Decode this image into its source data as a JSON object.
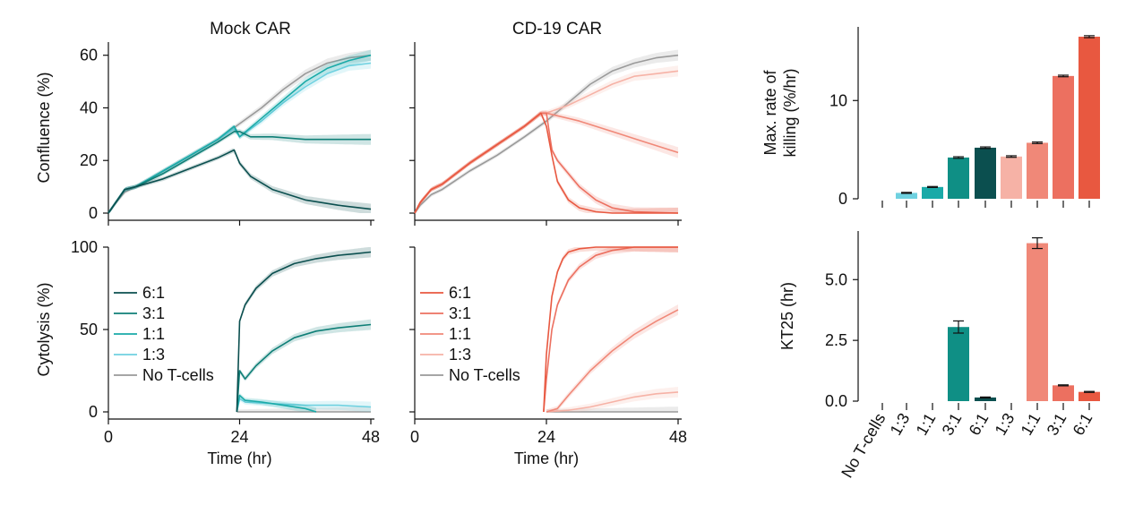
{
  "colors": {
    "teal": [
      "#0b4f4f",
      "#0f7f77",
      "#1aaaa8",
      "#6fd1e0"
    ],
    "coral": [
      "#e85840",
      "#ec7060",
      "#f08878",
      "#f6b2a6"
    ],
    "gray": "#9a9a9a",
    "bar_colors": [
      "#9a9a9a",
      "#6fd1e0",
      "#1aaaa8",
      "#0f8f85",
      "#0b4f4f",
      "#f6b2a6",
      "#f08878",
      "#ec7060",
      "#e85840"
    ]
  },
  "chart_data": [
    {
      "id": "mock_confluence",
      "type": "line",
      "title": "Mock CAR",
      "xlabel": "",
      "ylabel": "Confluence (%)",
      "xlim": [
        0,
        48
      ],
      "ylim": [
        0,
        65
      ],
      "xticks": [
        0,
        24,
        48
      ],
      "yticks": [
        0,
        20,
        40,
        60
      ],
      "ytick_labels": [
        "0",
        "20",
        "40",
        "60"
      ],
      "series": [
        {
          "color_ref": "teal.0",
          "x": [
            0,
            1,
            3,
            5,
            10,
            15,
            20,
            23,
            24,
            26,
            30,
            36,
            42,
            48
          ],
          "y": [
            0,
            3,
            9,
            10,
            13,
            17,
            21,
            24,
            19,
            14,
            9,
            5,
            3,
            1.5
          ]
        },
        {
          "color_ref": "teal.1",
          "x": [
            0,
            1,
            3,
            5,
            10,
            15,
            20,
            23,
            24,
            26,
            30,
            36,
            42,
            48
          ],
          "y": [
            0,
            3,
            9,
            10,
            15,
            21,
            27,
            31,
            31,
            29,
            29,
            28,
            28,
            28
          ]
        },
        {
          "color_ref": "teal.2",
          "x": [
            0,
            1,
            3,
            5,
            10,
            15,
            20,
            23,
            24,
            28,
            32,
            36,
            40,
            44,
            48
          ],
          "y": [
            0,
            3,
            9,
            10,
            16,
            22,
            28,
            33,
            29,
            36,
            43,
            50,
            55,
            58,
            60
          ]
        },
        {
          "color_ref": "teal.3",
          "x": [
            0,
            1,
            3,
            5,
            10,
            15,
            20,
            23,
            24,
            28,
            32,
            36,
            40,
            44,
            48
          ],
          "y": [
            0,
            3,
            9,
            10,
            16,
            22,
            28,
            32,
            29,
            35,
            42,
            48,
            53,
            56,
            57
          ]
        },
        {
          "color_ref": "gray",
          "x": [
            0,
            1,
            3,
            5,
            10,
            15,
            20,
            24,
            28,
            32,
            36,
            40,
            44,
            48
          ],
          "y": [
            0,
            3,
            8,
            10,
            16,
            22,
            28,
            34,
            40,
            47,
            53,
            57,
            59,
            60
          ]
        }
      ]
    },
    {
      "id": "cd19_confluence",
      "type": "line",
      "title": "CD-19 CAR",
      "xlabel": "",
      "ylabel": "",
      "xlim": [
        0,
        48
      ],
      "ylim": [
        0,
        65
      ],
      "xticks": [
        0,
        24,
        48
      ],
      "yticks": [
        0,
        20,
        40,
        60
      ],
      "series": [
        {
          "color_ref": "coral.0",
          "x": [
            0,
            1,
            3,
            5,
            10,
            15,
            20,
            23,
            24,
            25,
            26,
            28,
            30,
            33,
            36,
            48
          ],
          "y": [
            0,
            4,
            9,
            11,
            19,
            26,
            33,
            38,
            33,
            22,
            12,
            5,
            2,
            0.5,
            0,
            0
          ]
        },
        {
          "color_ref": "coral.1",
          "x": [
            0,
            1,
            3,
            5,
            10,
            15,
            20,
            23,
            24,
            25,
            26,
            28,
            30,
            33,
            36,
            40,
            48
          ],
          "y": [
            0,
            4,
            9,
            11,
            19,
            26,
            33,
            38,
            38,
            24,
            20,
            15,
            10,
            5,
            2,
            0.5,
            0
          ]
        },
        {
          "color_ref": "coral.2",
          "x": [
            0,
            1,
            3,
            5,
            10,
            15,
            20,
            23,
            24,
            26,
            30,
            36,
            42,
            48
          ],
          "y": [
            0,
            4,
            9,
            11,
            19,
            26,
            33,
            38,
            38,
            37,
            35,
            31,
            27,
            23
          ]
        },
        {
          "color_ref": "coral.3",
          "x": [
            0,
            1,
            3,
            5,
            10,
            15,
            20,
            23,
            24,
            28,
            32,
            36,
            40,
            44,
            48
          ],
          "y": [
            0,
            4,
            9,
            11,
            19,
            26,
            33,
            38,
            38,
            41,
            45,
            49,
            52,
            53,
            54
          ]
        },
        {
          "color_ref": "gray",
          "x": [
            0,
            1,
            3,
            5,
            10,
            15,
            20,
            24,
            28,
            32,
            36,
            40,
            44,
            48
          ],
          "y": [
            0,
            3,
            7,
            9,
            16,
            22,
            29,
            35,
            42,
            49,
            54,
            57,
            59,
            60
          ]
        }
      ]
    },
    {
      "id": "mock_cytolysis",
      "type": "line",
      "title": "",
      "xlabel": "Time (hr)",
      "ylabel": "Cytolysis (%)",
      "xlim": [
        0,
        48
      ],
      "ylim": [
        0,
        100
      ],
      "xticks": [
        0,
        24,
        48
      ],
      "xtick_labels": [
        "0",
        "24",
        "48"
      ],
      "yticks": [
        0,
        50,
        100
      ],
      "ytick_labels": [
        "0",
        "50",
        "100"
      ],
      "series": [
        {
          "name": "6:1",
          "color_ref": "teal.0",
          "x": [
            23.5,
            24,
            25,
            27,
            30,
            34,
            38,
            42,
            45,
            48
          ],
          "y": [
            0,
            55,
            65,
            75,
            84,
            90,
            93,
            95,
            96,
            97
          ]
        },
        {
          "name": "3:1",
          "color_ref": "teal.1",
          "x": [
            23.5,
            24,
            25,
            27,
            30,
            34,
            38,
            42,
            45,
            48
          ],
          "y": [
            0,
            25,
            20,
            28,
            37,
            45,
            49,
            51,
            52,
            53
          ]
        },
        {
          "name": "1:1",
          "color_ref": "teal.2",
          "x": [
            23.5,
            24,
            25,
            28,
            32,
            36,
            38
          ],
          "y": [
            0,
            10,
            7,
            6,
            4,
            2,
            0
          ]
        },
        {
          "name": "1:3",
          "color_ref": "teal.3",
          "x": [
            23.5,
            24,
            25,
            30,
            36,
            42,
            48
          ],
          "y": [
            0,
            8,
            6,
            5,
            4,
            4,
            3
          ]
        },
        {
          "name": "No T-cells",
          "color_ref": "gray",
          "x": [
            23.5,
            48
          ],
          "y": [
            0,
            0
          ]
        }
      ],
      "legend": {
        "placement": "center-left"
      }
    },
    {
      "id": "cd19_cytolysis",
      "type": "line",
      "title": "",
      "xlabel": "Time (hr)",
      "ylabel": "",
      "xlim": [
        0,
        48
      ],
      "ylim": [
        0,
        100
      ],
      "xticks": [
        0,
        24,
        48
      ],
      "xtick_labels": [
        "0",
        "24",
        "48"
      ],
      "yticks": [
        0,
        50,
        100
      ],
      "series": [
        {
          "name": "6:1",
          "color_ref": "coral.0",
          "x": [
            23.5,
            24,
            25,
            26,
            27,
            28,
            30,
            33,
            48
          ],
          "y": [
            0,
            35,
            70,
            85,
            93,
            97,
            99,
            100,
            100
          ]
        },
        {
          "name": "3:1",
          "color_ref": "coral.1",
          "x": [
            23.5,
            24,
            25,
            26,
            28,
            30,
            33,
            36,
            40,
            48
          ],
          "y": [
            0,
            20,
            50,
            65,
            80,
            88,
            95,
            98,
            100,
            100
          ]
        },
        {
          "name": "1:1",
          "color_ref": "coral.2",
          "x": [
            24,
            26,
            28,
            32,
            36,
            40,
            44,
            48
          ],
          "y": [
            0,
            2,
            10,
            25,
            37,
            47,
            55,
            62
          ]
        },
        {
          "name": "1:3",
          "color_ref": "coral.3",
          "x": [
            24,
            28,
            32,
            36,
            40,
            44,
            48
          ],
          "y": [
            0,
            1,
            3,
            6,
            9,
            11,
            12
          ]
        },
        {
          "name": "No T-cells",
          "color_ref": "gray",
          "x": [
            24,
            48
          ],
          "y": [
            0,
            0
          ]
        }
      ],
      "legend": {
        "placement": "center-left"
      }
    },
    {
      "id": "max_rate_killing",
      "type": "bar",
      "ylabel": "Max. rate of killing (%/hr)",
      "ylabel_lines": [
        "Max. rate of",
        "killing (%/hr)"
      ],
      "categories": [
        "No T-cells",
        "1:3",
        "1:1",
        "3:1",
        "6:1",
        "1:3",
        "1:1",
        "3:1",
        "6:1"
      ],
      "values": [
        0,
        0.6,
        1.2,
        4.2,
        5.2,
        4.3,
        5.7,
        12.5,
        16.5
      ],
      "errors": [
        0,
        0.05,
        0.05,
        0.08,
        0.08,
        0.08,
        0.08,
        0.08,
        0.1
      ],
      "ylim": [
        0,
        17.5
      ],
      "yticks": [
        0,
        10
      ],
      "ytick_labels": [
        "0",
        "10"
      ]
    },
    {
      "id": "kt25",
      "type": "bar",
      "ylabel": "KT25 (hr)",
      "categories": [
        "No T-cells",
        "1:3",
        "1:1",
        "3:1",
        "6:1",
        "1:3",
        "1:1",
        "3:1",
        "6:1"
      ],
      "category_labels": [
        "No T-cells",
        "1:3",
        "1:1",
        "3:1",
        "6:1",
        "1:3",
        "1:1",
        "3:1",
        "6:1"
      ],
      "values": [
        0,
        0,
        0,
        3.05,
        0.15,
        0,
        6.5,
        0.65,
        0.38
      ],
      "errors": [
        0,
        0,
        0,
        0.25,
        0.02,
        0,
        0.22,
        0.02,
        0.02
      ],
      "ylim": [
        0,
        7
      ],
      "yticks": [
        0,
        2.5,
        5
      ],
      "ytick_labels": [
        "0.0",
        "2.5",
        "5.0"
      ]
    }
  ]
}
